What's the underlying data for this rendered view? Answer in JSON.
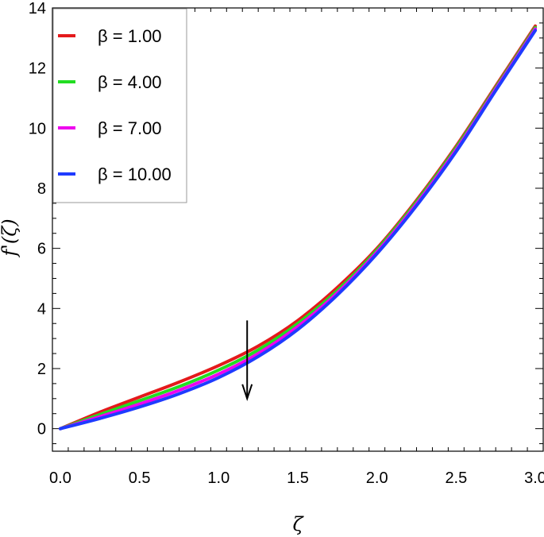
{
  "chart_data": {
    "type": "line",
    "xlabel": "ζ",
    "ylabel": "f'(ζ)",
    "xlim": [
      -0.05,
      3.05
    ],
    "ylim": [
      -0.75,
      14.0
    ],
    "xticks": [
      0.0,
      0.5,
      1.0,
      1.5,
      2.0,
      2.5,
      3.0
    ],
    "xtick_labels": [
      "0.0",
      "0.5",
      "1.0",
      "1.5",
      "2.0",
      "2.5",
      "3.0"
    ],
    "yticks": [
      0,
      2,
      4,
      6,
      8,
      10,
      12,
      14
    ],
    "ytick_labels": [
      "0",
      "2",
      "4",
      "6",
      "8",
      "10",
      "12",
      "14"
    ],
    "grid": false,
    "legend_position": "top-left",
    "series": [
      {
        "name": "β = 1.00",
        "color": "#e41a1c",
        "x": [
          0.0,
          0.25,
          0.5,
          0.75,
          1.0,
          1.25,
          1.5,
          1.75,
          2.0,
          2.25,
          2.5,
          2.75,
          3.0
        ],
        "y": [
          0.0,
          0.55,
          1.05,
          1.55,
          2.1,
          2.75,
          3.6,
          4.7,
          6.0,
          7.6,
          9.4,
          11.4,
          13.4
        ]
      },
      {
        "name": "β = 4.00",
        "color": "#22dd22",
        "x": [
          0.0,
          0.25,
          0.5,
          0.75,
          1.0,
          1.25,
          1.5,
          1.75,
          2.0,
          2.25,
          2.5,
          2.75,
          3.0
        ],
        "y": [
          0.0,
          0.47,
          0.93,
          1.4,
          1.95,
          2.62,
          3.5,
          4.6,
          5.95,
          7.55,
          9.35,
          11.35,
          13.35
        ]
      },
      {
        "name": "β = 7.00",
        "color": "#ee00ee",
        "x": [
          0.0,
          0.25,
          0.5,
          0.75,
          1.0,
          1.25,
          1.5,
          1.75,
          2.0,
          2.25,
          2.5,
          2.75,
          3.0
        ],
        "y": [
          0.0,
          0.4,
          0.82,
          1.28,
          1.82,
          2.5,
          3.4,
          4.52,
          5.88,
          7.48,
          9.28,
          11.3,
          13.3
        ]
      },
      {
        "name": "β = 10.00",
        "color": "#1f3bff",
        "x": [
          0.0,
          0.25,
          0.5,
          0.75,
          1.0,
          1.25,
          1.5,
          1.75,
          2.0,
          2.25,
          2.5,
          2.75,
          3.0
        ],
        "y": [
          0.0,
          0.34,
          0.72,
          1.16,
          1.7,
          2.4,
          3.3,
          4.45,
          5.82,
          7.42,
          9.22,
          11.25,
          13.25
        ]
      }
    ],
    "annotation": {
      "type": "arrow",
      "x": 1.18,
      "y_start": 3.6,
      "y_end": 1.0,
      "color": "#000000"
    }
  }
}
